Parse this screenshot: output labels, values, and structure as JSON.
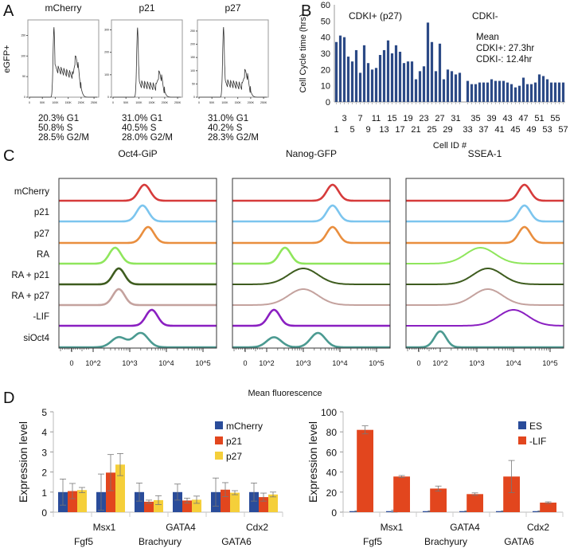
{
  "panel_letters": [
    "A",
    "B",
    "C",
    "D"
  ],
  "chart_data": [
    {
      "panel": "A",
      "type": "line",
      "ylabel": "eGFP+",
      "x_ticks": [
        "0",
        "50K",
        "100K",
        "150K",
        "200K",
        "250K"
      ],
      "plots": [
        {
          "title": "mCherry",
          "y_ticks": [
            "0",
            "50",
            "100",
            "150"
          ],
          "ymax": 180,
          "g1_peak": 170,
          "s_level": 70,
          "g2_peak": 95,
          "stats": [
            "20.3% G1",
            "50.8% S",
            "28.5% G2/M"
          ]
        },
        {
          "title": "p21",
          "y_ticks": [
            "0",
            "100",
            "200",
            "300"
          ],
          "ymax": 330,
          "g1_peak": 310,
          "s_level": 60,
          "g2_peak": 105,
          "stats": [
            "31.0% G1",
            "40.5% S",
            "28.0% G2/M"
          ]
        },
        {
          "title": "p27",
          "y_ticks": [
            "0",
            "50",
            "100",
            "150",
            "200",
            "250"
          ],
          "ymax": 280,
          "g1_peak": 265,
          "s_level": 55,
          "g2_peak": 95,
          "stats": [
            "31.0% G1",
            "40.2% S",
            "28.3% G2/M"
          ]
        }
      ]
    },
    {
      "panel": "B",
      "type": "bar",
      "ylabel": "Cell Cycle time (hrs)",
      "xlabel": "Cell ID #",
      "ylim": [
        0,
        60
      ],
      "y_ticks": [
        "0",
        "10",
        "20",
        "30",
        "40",
        "50",
        "60"
      ],
      "x_ticks_row1": [
        "3",
        "7",
        "11",
        "15",
        "19",
        "23",
        "27",
        "31",
        "35",
        "39",
        "43",
        "47",
        "51",
        "55"
      ],
      "x_ticks_row2": [
        "1",
        "5",
        "9",
        "13",
        "17",
        "21",
        "25",
        "29",
        "33",
        "37",
        "41",
        "45",
        "49",
        "53",
        "57"
      ],
      "group_labels": [
        "CDKI+ (p27)",
        "CDKI-"
      ],
      "annotation": [
        "Mean",
        "CDKI+: 27.3hr",
        "CDKI-: 12.4hr"
      ],
      "color": "#2c4a86",
      "cdki_plus": [
        37,
        41,
        40,
        28,
        25,
        32,
        18,
        35,
        24,
        20,
        21,
        29,
        32,
        38,
        30,
        35,
        31,
        24,
        25,
        25,
        14,
        19,
        22,
        49,
        37,
        19,
        36,
        14,
        20,
        19,
        17,
        18
      ],
      "cdki_minus": [
        13,
        11,
        11,
        12,
        12,
        12,
        14,
        13,
        13,
        13,
        12,
        11,
        9,
        10,
        15,
        11,
        11,
        12,
        17,
        16,
        14,
        12,
        12,
        12,
        12
      ]
    },
    {
      "panel": "C",
      "type": "line",
      "xlabel": "Mean fluorescence",
      "x_ticks": [
        "0",
        "10^2",
        "10^3",
        "10^4",
        "10^5"
      ],
      "conditions": [
        "mCherry",
        "p21",
        "p27",
        "RA",
        "RA + p21",
        "RA + p27",
        "-LIF",
        "siOct4"
      ],
      "colors": [
        "#d63b3b",
        "#7cc5ee",
        "#e98e3e",
        "#8fe65c",
        "#3e5c1f",
        "#c4a29e",
        "#8a1fc1",
        "#4b9a91"
      ],
      "plots": [
        {
          "title": "Oct4-GiP",
          "peaks_log10": [
            [
              3.4
            ],
            [
              3.35
            ],
            [
              3.5
            ],
            [
              2.6
            ],
            [
              2.7
            ],
            [
              2.7
            ],
            [
              3.6
            ],
            [
              2.7,
              3.3
            ]
          ]
        },
        {
          "title": "Nanog-GFP",
          "peaks_log10": [
            [
              3.8
            ],
            [
              3.8
            ],
            [
              3.8
            ],
            [
              2.5
            ],
            [
              3.0
            ],
            [
              3.0
            ],
            [
              2.2
            ],
            [
              2.2,
              3.4
            ]
          ]
        },
        {
          "title": "SSEA-1",
          "peaks_log10": [
            [
              4.3
            ],
            [
              4.3
            ],
            [
              4.3
            ],
            [
              3.1
            ],
            [
              3.3
            ],
            [
              3.3
            ],
            [
              4.0
            ],
            [
              2.0
            ]
          ]
        }
      ]
    },
    {
      "panel": "D",
      "type": "bar",
      "ylabel": "Expression level",
      "categories_row1": [
        "Msx1",
        "GATA4",
        "Cdx2"
      ],
      "categories_row2": [
        "Fgf5",
        "Brachyury",
        "GATA6"
      ],
      "categories": [
        "Fgf5",
        "Msx1",
        "Brachyury",
        "GATA4",
        "GATA6",
        "Cdx2"
      ],
      "ylim": [
        0,
        5
      ],
      "y_ticks": [
        "0",
        "1",
        "2",
        "3",
        "4",
        "5"
      ],
      "legend": "top-right",
      "series": [
        {
          "name": "mCherry",
          "color": "#2a4c9a",
          "values": [
            1,
            1,
            1,
            1,
            1,
            1
          ],
          "errors": [
            0.65,
            0.9,
            0.45,
            0.4,
            0.7,
            0.45
          ]
        },
        {
          "name": "p21",
          "color": "#e2461e",
          "values": [
            1.05,
            1.97,
            0.52,
            0.58,
            1.12,
            0.75
          ],
          "errors": [
            0.38,
            0.9,
            0.08,
            0.12,
            0.35,
            0.2
          ]
        },
        {
          "name": "p27",
          "color": "#f5cf3a",
          "values": [
            1.1,
            2.37,
            0.6,
            0.62,
            0.97,
            0.88
          ],
          "errors": [
            0.13,
            0.55,
            0.22,
            0.18,
            0.1,
            0.12
          ]
        }
      ]
    },
    {
      "panel": "D",
      "type": "bar",
      "ylabel": "Expression level",
      "categories_row1": [
        "Msx1",
        "GATA4",
        "Cdx2"
      ],
      "categories_row2": [
        "Fgf5",
        "Brachyury",
        "GATA6"
      ],
      "categories": [
        "Fgf5",
        "Msx1",
        "Brachyury",
        "GATA4",
        "GATA6",
        "Cdx2"
      ],
      "ylim": [
        0,
        100
      ],
      "y_ticks": [
        "0",
        "20",
        "40",
        "60",
        "80",
        "100"
      ],
      "legend": "top-right",
      "series": [
        {
          "name": "ES",
          "color": "#2a4c9a",
          "values": [
            1,
            1,
            1,
            1,
            1,
            1
          ],
          "errors": [
            0.3,
            1,
            0.3,
            0.3,
            0.3,
            0.3
          ]
        },
        {
          "name": "-LIF",
          "color": "#e2461e",
          "values": [
            82,
            35.5,
            23.5,
            18,
            35.5,
            9.5
          ],
          "errors": [
            4,
            1,
            2.5,
            1.2,
            16,
            0.8
          ]
        }
      ]
    }
  ]
}
